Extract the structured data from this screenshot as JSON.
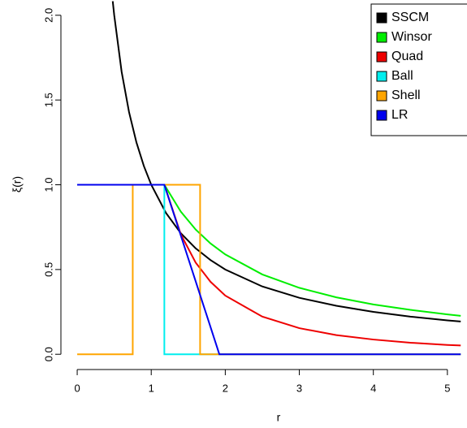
{
  "chart_data": {
    "type": "line",
    "xlabel": "r",
    "ylabel": "ξ(r)",
    "xlim": [
      -0.22,
      5.21
    ],
    "ylim": [
      -0.09,
      2.09
    ],
    "xticks": [
      0,
      1,
      2,
      3,
      4,
      5
    ],
    "yticks": [
      {
        "value": 0,
        "label": "0.0"
      },
      {
        "value": 0.5,
        "label": "0.5"
      },
      {
        "value": 1,
        "label": "1.0"
      },
      {
        "value": 1.5,
        "label": "1.5"
      },
      {
        "value": 2,
        "label": "2.0"
      }
    ],
    "legend": "top-right",
    "series": [
      {
        "name": "SSCM",
        "color": "#000000",
        "x": [
          0.48,
          0.5,
          0.6,
          0.7,
          0.8,
          0.9,
          1.0,
          1.2,
          1.4,
          1.6,
          1.8,
          2.0,
          2.5,
          3,
          3.5,
          4,
          4.5,
          5,
          5.18
        ],
        "values": [
          2.083,
          2,
          1.667,
          1.429,
          1.25,
          1.111,
          1,
          0.833,
          0.714,
          0.625,
          0.556,
          0.5,
          0.4,
          0.333,
          0.286,
          0.25,
          0.222,
          0.2,
          0.193
        ]
      },
      {
        "name": "Winsor",
        "color": "#00ee00",
        "x": [
          0,
          1.177,
          1.4,
          1.6,
          1.8,
          2,
          2.5,
          3,
          3.5,
          4,
          4.5,
          5,
          5.18
        ],
        "values": [
          1,
          1,
          0.841,
          0.736,
          0.654,
          0.589,
          0.471,
          0.392,
          0.336,
          0.294,
          0.262,
          0.235,
          0.227
        ]
      },
      {
        "name": "Quad",
        "color": "#ee0000",
        "x": [
          0,
          1.177,
          1.4,
          1.6,
          1.8,
          2,
          2.5,
          3,
          3.5,
          4,
          4.5,
          5,
          5.18
        ],
        "values": [
          1,
          1,
          0.707,
          0.541,
          0.428,
          0.346,
          0.222,
          0.154,
          0.113,
          0.087,
          0.068,
          0.055,
          0.052
        ]
      },
      {
        "name": "Ball",
        "color": "#00eeee",
        "x": [
          0,
          1.177,
          1.177,
          5.18
        ],
        "values": [
          1,
          1,
          0,
          0
        ]
      },
      {
        "name": "Shell",
        "color": "#ffa500",
        "x": [
          0,
          0.75,
          0.75,
          1.66,
          1.66,
          5.18
        ],
        "values": [
          0,
          0,
          1,
          1,
          0,
          0
        ]
      },
      {
        "name": "LR",
        "color": "#0000ee",
        "x": [
          0,
          1.177,
          1.92,
          5.18
        ],
        "values": [
          1,
          1,
          0,
          0
        ]
      }
    ]
  }
}
